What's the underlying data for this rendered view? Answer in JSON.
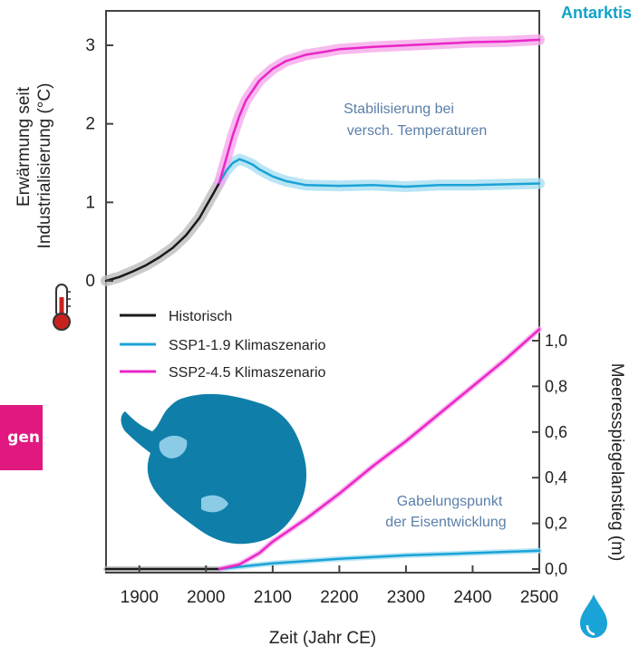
{
  "region_label": "Antarktis",
  "side_badge": "gen",
  "colors": {
    "historical": "#1a1a1a",
    "historical_band": "#bdbdbd",
    "ssp119": "#1aa3d6",
    "ssp119_band": "#a8dff1",
    "ssp245": "#ea25c8",
    "ssp245_band": "#f5a9ea",
    "annotation": "#5b7fa8",
    "map_land": "#0f7fa9",
    "map_ice_shelf": "#8ccbe6",
    "region_label": "#11a3c8",
    "badge": "#e0187f"
  },
  "icons": {
    "thermometer": "thermometer-icon",
    "water_drop": "water-drop-icon",
    "map": "antarctica-map"
  },
  "chart_data": [
    {
      "type": "line",
      "panel": "temperature",
      "ylabel_line1": "Erwärmung seit",
      "ylabel_line2": "Industrialisierung (°C)",
      "ylim": [
        -0.1,
        3.5
      ],
      "yticks": [
        0,
        1,
        2,
        3
      ],
      "ytick_labels": [
        "0",
        "1",
        "2",
        "3"
      ],
      "annotation_line1": "Stabilisierung bei",
      "annotation_line2": "versch. Temperaturen",
      "series": [
        {
          "name": "Historisch",
          "key": "historical",
          "x": [
            1850,
            1870,
            1890,
            1910,
            1930,
            1950,
            1970,
            1990,
            2000,
            2010,
            2020
          ],
          "y": [
            0.0,
            0.05,
            0.12,
            0.2,
            0.3,
            0.42,
            0.58,
            0.8,
            0.95,
            1.1,
            1.25
          ]
        },
        {
          "name": "SSP1-1.9 Klimaszenario",
          "key": "ssp119",
          "x": [
            2020,
            2030,
            2040,
            2050,
            2060,
            2070,
            2080,
            2100,
            2120,
            2150,
            2200,
            2250,
            2300,
            2350,
            2400,
            2450,
            2500
          ],
          "y": [
            1.25,
            1.4,
            1.5,
            1.55,
            1.52,
            1.48,
            1.42,
            1.33,
            1.27,
            1.22,
            1.21,
            1.22,
            1.2,
            1.22,
            1.22,
            1.23,
            1.24
          ]
        },
        {
          "name": "SSP2-4.5 Klimaszenario",
          "key": "ssp245",
          "x": [
            2020,
            2030,
            2040,
            2050,
            2060,
            2080,
            2100,
            2120,
            2150,
            2180,
            2200,
            2250,
            2300,
            2350,
            2400,
            2450,
            2500
          ],
          "y": [
            1.25,
            1.55,
            1.85,
            2.1,
            2.3,
            2.55,
            2.7,
            2.8,
            2.88,
            2.92,
            2.95,
            2.98,
            3.0,
            3.02,
            3.04,
            3.05,
            3.07
          ]
        }
      ]
    },
    {
      "type": "line",
      "panel": "sea_level",
      "ylabel": "Meeresspiegelanstieg (m)",
      "ylim": [
        0,
        1.05
      ],
      "yticks": [
        0,
        0.2,
        0.4,
        0.6,
        0.8,
        1.0
      ],
      "ytick_labels": [
        "0,0",
        "0,2",
        "0,4",
        "0,6",
        "0,8",
        "1,0"
      ],
      "xlabel": "Zeit (Jahr CE)",
      "xlim": [
        1850,
        2500
      ],
      "xticks": [
        1900,
        2000,
        2100,
        2200,
        2300,
        2400,
        2500
      ],
      "xtick_labels": [
        "1900",
        "2000",
        "2100",
        "2200",
        "2300",
        "2400",
        "2500"
      ],
      "annotation_line1": "Gabelungspunkt",
      "annotation_line2": "der Eisentwicklung",
      "series": [
        {
          "name": "Historisch",
          "key": "historical",
          "x": [
            1850,
            1900,
            1950,
            2000,
            2020
          ],
          "y": [
            0.0,
            0.0,
            0.0,
            0.0,
            0.0
          ]
        },
        {
          "name": "SSP1-1.9 Klimaszenario",
          "key": "ssp119",
          "x": [
            2020,
            2050,
            2100,
            2150,
            2200,
            2300,
            2400,
            2500
          ],
          "y": [
            0.0,
            0.01,
            0.025,
            0.035,
            0.045,
            0.06,
            0.07,
            0.08
          ]
        },
        {
          "name": "SSP2-4.5 Klimaszenario",
          "key": "ssp245",
          "x": [
            2020,
            2050,
            2080,
            2100,
            2150,
            2200,
            2250,
            2300,
            2350,
            2400,
            2450,
            2500
          ],
          "y": [
            0.0,
            0.02,
            0.07,
            0.12,
            0.22,
            0.33,
            0.45,
            0.56,
            0.68,
            0.8,
            0.92,
            1.05
          ]
        }
      ]
    }
  ]
}
